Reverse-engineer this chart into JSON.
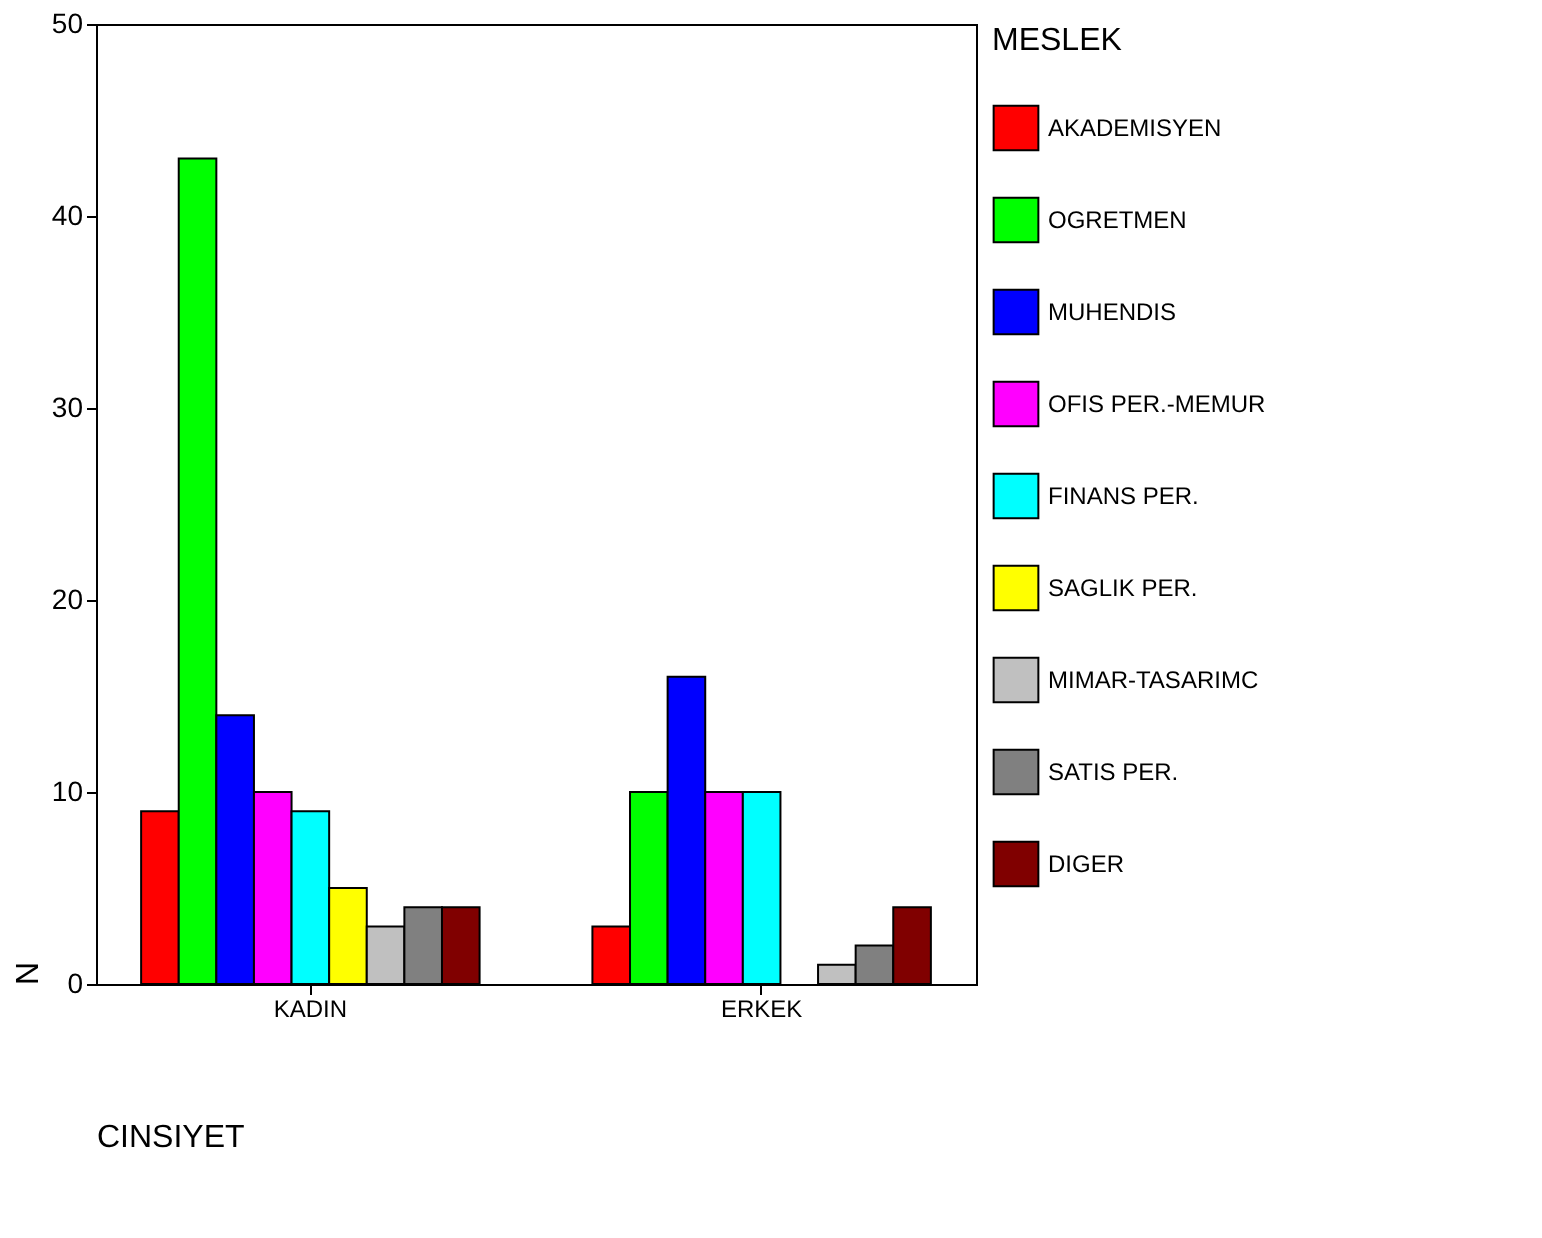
{
  "chart_data": {
    "type": "bar",
    "xlabel": "CINSIYET",
    "ylabel": "N",
    "legend_title": "MESLEK",
    "categories": [
      "KADIN",
      "ERKEK"
    ],
    "series": [
      {
        "name": "AKADEMISYEN",
        "color": "#ff0000",
        "values": [
          9,
          3
        ]
      },
      {
        "name": "OGRETMEN",
        "color": "#00ff00",
        "values": [
          43,
          10
        ]
      },
      {
        "name": "MUHENDIS",
        "color": "#0000ff",
        "values": [
          14,
          16
        ]
      },
      {
        "name": "OFIS PER.-MEMUR",
        "color": "#ff00ff",
        "values": [
          10,
          10
        ]
      },
      {
        "name": "FINANS PER.",
        "color": "#00ffff",
        "values": [
          9,
          10
        ]
      },
      {
        "name": "SAGLIK PER.",
        "color": "#ffff00",
        "values": [
          5,
          null
        ]
      },
      {
        "name": "MIMAR-TASARIMC",
        "color": "#c0c0c0",
        "values": [
          3,
          1
        ]
      },
      {
        "name": "SATIS PER.",
        "color": "#808080",
        "values": [
          4,
          2
        ]
      },
      {
        "name": "DIGER",
        "color": "#800000",
        "values": [
          4,
          4
        ]
      }
    ],
    "ylim": [
      0,
      50
    ],
    "yticks": [
      0,
      10,
      20,
      30,
      40,
      50
    ],
    "grid": false,
    "legend": "right"
  }
}
